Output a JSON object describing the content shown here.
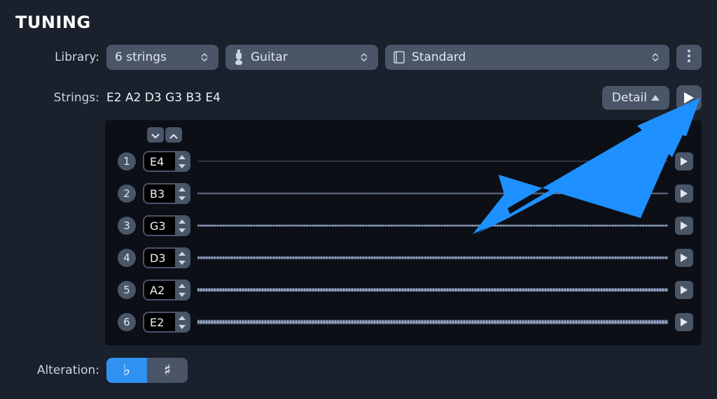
{
  "title": "TUNING",
  "labels": {
    "library": "Library:",
    "strings": "Strings:",
    "alteration": "Alteration:"
  },
  "dropdowns": {
    "string_count": {
      "label": "6 strings"
    },
    "instrument": {
      "label": "Guitar"
    },
    "preset": {
      "label": "Standard"
    }
  },
  "strings_summary": "E2 A2 D3 G3 B3 E4",
  "detail_button": {
    "label": "Detail"
  },
  "strings": [
    {
      "index": "1",
      "note": "E4",
      "thickness": 2
    },
    {
      "index": "2",
      "note": "B3",
      "thickness": 3
    },
    {
      "index": "3",
      "note": "G3",
      "thickness": 4
    },
    {
      "index": "4",
      "note": "D3",
      "thickness": 5
    },
    {
      "index": "5",
      "note": "A2",
      "thickness": 6
    },
    {
      "index": "6",
      "note": "E2",
      "thickness": 7
    }
  ],
  "alteration": {
    "flat": {
      "glyph": "♭",
      "active": true
    },
    "sharp": {
      "glyph": "♯",
      "active": false
    }
  },
  "colors": {
    "bg": "#1a202c",
    "panel_bg": "#0c0f16",
    "control_bg": "#4a5568",
    "text": "#e2e8f0",
    "accent": "#2f92f0",
    "wire": "#9aa7c8",
    "annotation_arrow": "#1e90ff"
  },
  "annotation": {
    "kind": "arrow",
    "target": "play-all-button"
  }
}
